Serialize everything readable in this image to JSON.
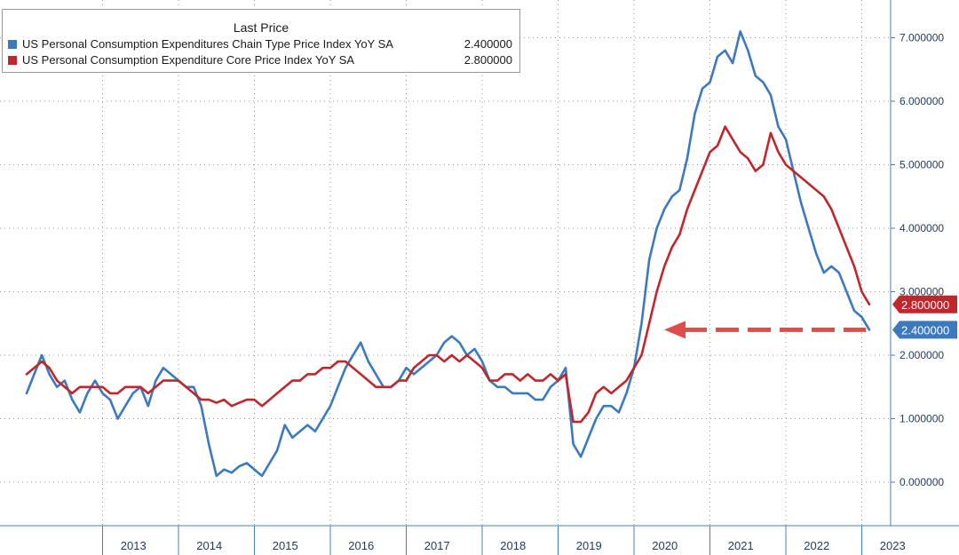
{
  "legend": {
    "title": "Last Price",
    "items": [
      {
        "name": "US Personal Consumption Expenditures Chain Type Price Index YoY SA",
        "value": "2.400000",
        "color": "#3b7abf"
      },
      {
        "name": "US Personal Consumption Expenditure Core Price Index YoY SA",
        "value": "2.800000",
        "color": "#c0272d"
      }
    ]
  },
  "chart_data": {
    "type": "line",
    "xlabel": "",
    "ylabel": "",
    "x_tick_labels": [
      "2013",
      "2014",
      "2015",
      "2016",
      "2017",
      "2018",
      "2019",
      "2020",
      "2021",
      "2022",
      "2023"
    ],
    "y_tick_labels": [
      "0.000000",
      "1.000000",
      "2.000000",
      "3.000000",
      "4.000000",
      "5.000000",
      "6.000000",
      "7.000000"
    ],
    "ylim": [
      -0.6,
      7.6
    ],
    "xlim": [
      2012.0,
      2024.0
    ],
    "grid": true,
    "legend_position": "top-left",
    "series": [
      {
        "name": "US Personal Consumption Expenditures Chain Type Price Index YoY SA",
        "color": "#3b7abf",
        "last_value_label": "2.400000",
        "points": [
          [
            2012.0,
            1.4
          ],
          [
            2012.1,
            1.7
          ],
          [
            2012.2,
            2.0
          ],
          [
            2012.3,
            1.7
          ],
          [
            2012.4,
            1.5
          ],
          [
            2012.5,
            1.6
          ],
          [
            2012.6,
            1.3
          ],
          [
            2012.7,
            1.1
          ],
          [
            2012.8,
            1.4
          ],
          [
            2012.9,
            1.6
          ],
          [
            2013.0,
            1.4
          ],
          [
            2013.1,
            1.3
          ],
          [
            2013.2,
            1.0
          ],
          [
            2013.3,
            1.2
          ],
          [
            2013.4,
            1.4
          ],
          [
            2013.5,
            1.5
          ],
          [
            2013.6,
            1.2
          ],
          [
            2013.7,
            1.6
          ],
          [
            2013.8,
            1.8
          ],
          [
            2013.9,
            1.7
          ],
          [
            2014.0,
            1.6
          ],
          [
            2014.1,
            1.5
          ],
          [
            2014.2,
            1.5
          ],
          [
            2014.3,
            1.2
          ],
          [
            2014.4,
            0.6
          ],
          [
            2014.5,
            0.1
          ],
          [
            2014.6,
            0.2
          ],
          [
            2014.7,
            0.15
          ],
          [
            2014.8,
            0.25
          ],
          [
            2014.9,
            0.3
          ],
          [
            2015.0,
            0.2
          ],
          [
            2015.1,
            0.1
          ],
          [
            2015.2,
            0.3
          ],
          [
            2015.3,
            0.5
          ],
          [
            2015.4,
            0.9
          ],
          [
            2015.5,
            0.7
          ],
          [
            2015.6,
            0.8
          ],
          [
            2015.7,
            0.9
          ],
          [
            2015.8,
            0.8
          ],
          [
            2015.9,
            1.0
          ],
          [
            2016.0,
            1.2
          ],
          [
            2016.1,
            1.5
          ],
          [
            2016.2,
            1.8
          ],
          [
            2016.3,
            2.0
          ],
          [
            2016.4,
            2.2
          ],
          [
            2016.5,
            1.9
          ],
          [
            2016.6,
            1.7
          ],
          [
            2016.7,
            1.5
          ],
          [
            2016.8,
            1.5
          ],
          [
            2016.9,
            1.6
          ],
          [
            2017.0,
            1.8
          ],
          [
            2017.1,
            1.7
          ],
          [
            2017.2,
            1.8
          ],
          [
            2017.3,
            1.9
          ],
          [
            2017.4,
            2.0
          ],
          [
            2017.5,
            2.2
          ],
          [
            2017.6,
            2.3
          ],
          [
            2017.7,
            2.2
          ],
          [
            2017.8,
            2.0
          ],
          [
            2017.9,
            2.1
          ],
          [
            2018.0,
            1.9
          ],
          [
            2018.1,
            1.6
          ],
          [
            2018.2,
            1.5
          ],
          [
            2018.3,
            1.5
          ],
          [
            2018.4,
            1.4
          ],
          [
            2018.5,
            1.4
          ],
          [
            2018.6,
            1.4
          ],
          [
            2018.7,
            1.3
          ],
          [
            2018.8,
            1.3
          ],
          [
            2018.9,
            1.5
          ],
          [
            2019.0,
            1.6
          ],
          [
            2019.1,
            1.8
          ],
          [
            2019.2,
            0.6
          ],
          [
            2019.3,
            0.4
          ],
          [
            2019.4,
            0.7
          ],
          [
            2019.5,
            1.0
          ],
          [
            2019.6,
            1.2
          ],
          [
            2019.7,
            1.2
          ],
          [
            2019.8,
            1.1
          ],
          [
            2019.9,
            1.4
          ],
          [
            2020.0,
            1.8
          ],
          [
            2020.1,
            2.5
          ],
          [
            2020.2,
            3.5
          ],
          [
            2020.3,
            4.0
          ],
          [
            2020.4,
            4.3
          ],
          [
            2020.5,
            4.5
          ],
          [
            2020.6,
            4.6
          ],
          [
            2020.7,
            5.1
          ],
          [
            2020.8,
            5.8
          ],
          [
            2020.9,
            6.2
          ],
          [
            2021.0,
            6.3
          ],
          [
            2021.1,
            6.7
          ],
          [
            2021.2,
            6.8
          ],
          [
            2021.3,
            6.6
          ],
          [
            2021.4,
            7.1
          ],
          [
            2021.5,
            6.8
          ],
          [
            2021.6,
            6.4
          ],
          [
            2021.7,
            6.3
          ],
          [
            2021.8,
            6.1
          ],
          [
            2021.9,
            5.6
          ],
          [
            2022.0,
            5.4
          ],
          [
            2022.1,
            4.9
          ],
          [
            2022.2,
            4.4
          ],
          [
            2022.3,
            4.0
          ],
          [
            2022.4,
            3.6
          ],
          [
            2022.5,
            3.3
          ],
          [
            2022.6,
            3.4
          ],
          [
            2022.7,
            3.3
          ],
          [
            2022.8,
            3.0
          ],
          [
            2022.9,
            2.7
          ],
          [
            2023.0,
            2.6
          ],
          [
            2023.1,
            2.4
          ]
        ]
      },
      {
        "name": "US Personal Consumption Expenditure Core Price Index YoY SA",
        "color": "#c0272d",
        "last_value_label": "2.800000",
        "points": [
          [
            2012.0,
            1.7
          ],
          [
            2012.1,
            1.8
          ],
          [
            2012.2,
            1.9
          ],
          [
            2012.3,
            1.8
          ],
          [
            2012.4,
            1.6
          ],
          [
            2012.5,
            1.5
          ],
          [
            2012.6,
            1.4
          ],
          [
            2012.7,
            1.5
          ],
          [
            2012.8,
            1.5
          ],
          [
            2012.9,
            1.5
          ],
          [
            2013.0,
            1.5
          ],
          [
            2013.1,
            1.4
          ],
          [
            2013.2,
            1.4
          ],
          [
            2013.3,
            1.5
          ],
          [
            2013.4,
            1.5
          ],
          [
            2013.5,
            1.5
          ],
          [
            2013.6,
            1.4
          ],
          [
            2013.7,
            1.5
          ],
          [
            2013.8,
            1.6
          ],
          [
            2013.9,
            1.6
          ],
          [
            2014.0,
            1.6
          ],
          [
            2014.1,
            1.5
          ],
          [
            2014.2,
            1.4
          ],
          [
            2014.3,
            1.3
          ],
          [
            2014.4,
            1.3
          ],
          [
            2014.5,
            1.25
          ],
          [
            2014.6,
            1.3
          ],
          [
            2014.7,
            1.2
          ],
          [
            2014.8,
            1.25
          ],
          [
            2014.9,
            1.3
          ],
          [
            2015.0,
            1.3
          ],
          [
            2015.1,
            1.2
          ],
          [
            2015.2,
            1.3
          ],
          [
            2015.3,
            1.4
          ],
          [
            2015.4,
            1.5
          ],
          [
            2015.5,
            1.6
          ],
          [
            2015.6,
            1.6
          ],
          [
            2015.7,
            1.7
          ],
          [
            2015.8,
            1.7
          ],
          [
            2015.9,
            1.8
          ],
          [
            2016.0,
            1.8
          ],
          [
            2016.1,
            1.9
          ],
          [
            2016.2,
            1.9
          ],
          [
            2016.3,
            1.8
          ],
          [
            2016.4,
            1.7
          ],
          [
            2016.5,
            1.6
          ],
          [
            2016.6,
            1.5
          ],
          [
            2016.7,
            1.5
          ],
          [
            2016.8,
            1.5
          ],
          [
            2016.9,
            1.6
          ],
          [
            2017.0,
            1.6
          ],
          [
            2017.1,
            1.8
          ],
          [
            2017.2,
            1.9
          ],
          [
            2017.3,
            2.0
          ],
          [
            2017.4,
            2.0
          ],
          [
            2017.5,
            1.9
          ],
          [
            2017.6,
            2.0
          ],
          [
            2017.7,
            1.9
          ],
          [
            2017.8,
            2.0
          ],
          [
            2017.9,
            1.9
          ],
          [
            2018.0,
            1.8
          ],
          [
            2018.1,
            1.6
          ],
          [
            2018.2,
            1.6
          ],
          [
            2018.3,
            1.7
          ],
          [
            2018.4,
            1.7
          ],
          [
            2018.5,
            1.6
          ],
          [
            2018.6,
            1.7
          ],
          [
            2018.7,
            1.6
          ],
          [
            2018.8,
            1.6
          ],
          [
            2018.9,
            1.7
          ],
          [
            2019.0,
            1.6
          ],
          [
            2019.1,
            1.7
          ],
          [
            2019.2,
            0.95
          ],
          [
            2019.3,
            0.95
          ],
          [
            2019.4,
            1.1
          ],
          [
            2019.5,
            1.4
          ],
          [
            2019.6,
            1.5
          ],
          [
            2019.7,
            1.4
          ],
          [
            2019.8,
            1.5
          ],
          [
            2019.9,
            1.6
          ],
          [
            2020.0,
            1.8
          ],
          [
            2020.1,
            2.0
          ],
          [
            2020.2,
            2.5
          ],
          [
            2020.3,
            3.0
          ],
          [
            2020.4,
            3.4
          ],
          [
            2020.5,
            3.7
          ],
          [
            2020.6,
            3.9
          ],
          [
            2020.7,
            4.3
          ],
          [
            2020.8,
            4.6
          ],
          [
            2020.9,
            4.9
          ],
          [
            2021.0,
            5.2
          ],
          [
            2021.1,
            5.3
          ],
          [
            2021.2,
            5.6
          ],
          [
            2021.3,
            5.4
          ],
          [
            2021.4,
            5.2
          ],
          [
            2021.5,
            5.1
          ],
          [
            2021.6,
            4.9
          ],
          [
            2021.7,
            5.0
          ],
          [
            2021.8,
            5.5
          ],
          [
            2021.9,
            5.2
          ],
          [
            2022.0,
            5.0
          ],
          [
            2022.1,
            4.9
          ],
          [
            2022.2,
            4.8
          ],
          [
            2022.3,
            4.7
          ],
          [
            2022.4,
            4.6
          ],
          [
            2022.5,
            4.5
          ],
          [
            2022.6,
            4.3
          ],
          [
            2022.7,
            4.0
          ],
          [
            2022.8,
            3.7
          ],
          [
            2022.9,
            3.4
          ],
          [
            2023.0,
            3.0
          ],
          [
            2023.1,
            2.8
          ]
        ]
      }
    ]
  }
}
